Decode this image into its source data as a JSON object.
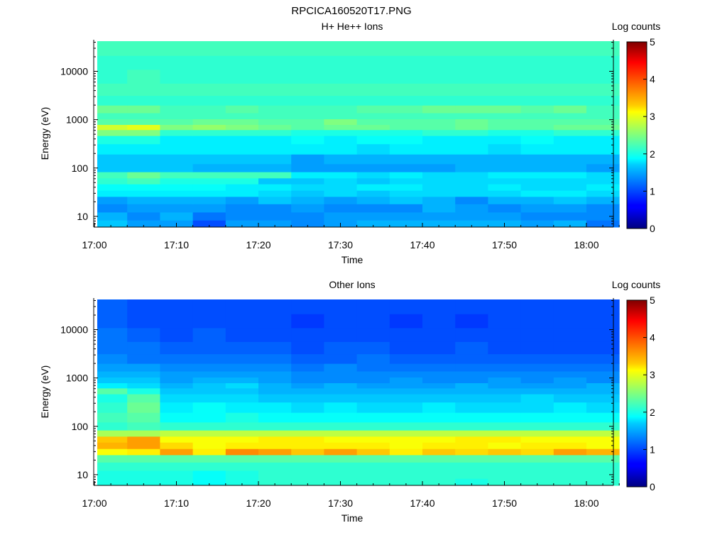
{
  "figure_title": "RPCICA160520T17.PNG",
  "chart_data": [
    {
      "type": "heatmap",
      "title": "H+ He++ Ions",
      "xlabel": "Time",
      "ylabel": "Energy (eV)",
      "x_ticks": [
        "17:00",
        "17:10",
        "17:20",
        "17:30",
        "17:40",
        "17:50",
        "18:00"
      ],
      "x_range": [
        "17:00",
        "18:06"
      ],
      "y_scale": "log",
      "y_ticks": [
        "10",
        "100",
        "1000",
        "10000"
      ],
      "y_range": [
        6,
        45000
      ],
      "colorbar": {
        "label": "Log counts",
        "ticks": [
          "0",
          "1",
          "2",
          "3",
          "4",
          "5"
        ],
        "range": [
          0,
          5
        ],
        "colormap": "jet"
      },
      "time_bins": [
        "17:00",
        "17:04",
        "17:08",
        "17:12",
        "17:16",
        "17:20",
        "17:24",
        "17:28",
        "17:32",
        "17:36",
        "17:40",
        "17:44",
        "17:48",
        "17:52",
        "17:56",
        "18:00",
        "18:04"
      ],
      "energy_bins": [
        7,
        10,
        15,
        22,
        30,
        40,
        55,
        70,
        100,
        150,
        250,
        400,
        550,
        700,
        900,
        1200,
        1600,
        2500,
        4000,
        8000,
        15000,
        30000
      ],
      "values": [
        [
          1.6,
          1.4,
          1.4,
          1.0,
          1.4,
          1.4,
          1.3,
          1.4,
          1.5,
          1.5,
          1.5,
          1.5,
          1.5,
          1.4,
          1.5,
          1.2,
          1.3
        ],
        [
          1.5,
          1.3,
          1.5,
          1.2,
          1.3,
          1.3,
          1.3,
          1.4,
          1.4,
          1.4,
          1.4,
          1.4,
          1.4,
          1.3,
          1.3,
          1.3,
          1.4
        ],
        [
          1.3,
          1.4,
          1.4,
          1.4,
          1.3,
          1.3,
          1.4,
          1.3,
          1.3,
          1.3,
          1.5,
          1.4,
          1.3,
          1.4,
          1.4,
          1.3,
          1.3
        ],
        [
          1.4,
          1.5,
          1.5,
          1.5,
          1.4,
          1.6,
          1.5,
          1.4,
          1.5,
          1.6,
          1.5,
          1.3,
          1.5,
          1.5,
          1.6,
          1.5,
          1.6
        ],
        [
          1.8,
          1.8,
          1.8,
          1.8,
          1.8,
          1.7,
          1.6,
          1.7,
          1.6,
          1.7,
          1.7,
          1.7,
          1.7,
          1.8,
          1.8,
          1.7,
          1.6
        ],
        [
          1.9,
          1.9,
          1.9,
          1.9,
          1.8,
          1.8,
          1.7,
          1.7,
          1.8,
          1.8,
          1.7,
          1.7,
          1.8,
          1.7,
          1.7,
          1.8,
          1.7
        ],
        [
          2.1,
          2.2,
          2.0,
          2.0,
          2.0,
          1.6,
          1.6,
          1.7,
          1.6,
          1.7,
          1.7,
          1.7,
          1.7,
          1.7,
          1.7,
          1.7,
          1.6
        ],
        [
          2.2,
          2.4,
          2.2,
          2.2,
          2.2,
          2.2,
          1.8,
          1.8,
          1.7,
          1.8,
          1.7,
          1.7,
          1.8,
          1.8,
          1.8,
          1.7,
          1.8
        ],
        [
          1.6,
          1.6,
          1.6,
          1.5,
          1.5,
          1.5,
          1.4,
          1.4,
          1.4,
          1.4,
          1.4,
          1.5,
          1.5,
          1.5,
          1.5,
          1.4,
          1.4
        ],
        [
          1.6,
          1.6,
          1.6,
          1.6,
          1.6,
          1.6,
          1.4,
          1.5,
          1.5,
          1.5,
          1.5,
          1.5,
          1.5,
          1.5,
          1.5,
          1.5,
          1.4
        ],
        [
          1.8,
          1.8,
          1.8,
          1.8,
          1.8,
          1.8,
          1.8,
          1.8,
          1.7,
          1.8,
          1.8,
          1.8,
          1.7,
          1.8,
          1.8,
          1.8,
          1.8
        ],
        [
          2.0,
          2.0,
          1.8,
          1.8,
          1.8,
          1.8,
          1.9,
          1.8,
          1.9,
          1.9,
          1.8,
          1.8,
          1.8,
          1.9,
          1.8,
          1.8,
          1.8
        ],
        [
          2.5,
          2.5,
          2.1,
          2.1,
          2.1,
          2.1,
          2.0,
          2.0,
          2.0,
          2.0,
          2.1,
          2.1,
          2.0,
          2.0,
          2.1,
          2.1,
          2.1
        ],
        [
          2.9,
          3.0,
          2.5,
          2.6,
          2.5,
          2.4,
          2.3,
          2.4,
          2.4,
          2.3,
          2.3,
          2.4,
          2.3,
          2.3,
          2.4,
          2.4,
          2.5
        ],
        [
          2.3,
          2.3,
          2.3,
          2.4,
          2.4,
          2.3,
          2.3,
          2.5,
          2.3,
          2.3,
          2.3,
          2.4,
          2.3,
          2.3,
          2.3,
          2.3,
          2.4
        ],
        [
          2.2,
          2.2,
          2.2,
          2.2,
          2.2,
          2.2,
          2.2,
          2.2,
          2.2,
          2.2,
          2.2,
          2.2,
          2.2,
          2.2,
          2.2,
          2.2,
          2.2
        ],
        [
          2.4,
          2.4,
          2.2,
          2.2,
          2.3,
          2.2,
          2.2,
          2.2,
          2.3,
          2.3,
          2.4,
          2.4,
          2.4,
          2.3,
          2.4,
          2.2,
          2.2
        ],
        [
          2.1,
          2.1,
          2.1,
          2.1,
          2.1,
          2.1,
          2.1,
          2.1,
          2.1,
          2.1,
          2.1,
          2.1,
          2.1,
          2.1,
          2.1,
          2.1,
          2.1
        ],
        [
          2.2,
          2.2,
          2.2,
          2.2,
          2.2,
          2.2,
          2.2,
          2.2,
          2.2,
          2.2,
          2.2,
          2.2,
          2.2,
          2.2,
          2.2,
          2.2,
          2.2
        ],
        [
          2.1,
          2.2,
          2.1,
          2.1,
          2.1,
          2.1,
          2.1,
          2.1,
          2.1,
          2.1,
          2.1,
          2.1,
          2.1,
          2.1,
          2.1,
          2.1,
          2.1
        ],
        [
          2.1,
          2.1,
          2.1,
          2.1,
          2.1,
          2.1,
          2.1,
          2.1,
          2.1,
          2.1,
          2.1,
          2.1,
          2.1,
          2.1,
          2.1,
          2.1,
          2.1
        ],
        [
          2.2,
          2.2,
          2.2,
          2.2,
          2.2,
          2.2,
          2.2,
          2.2,
          2.2,
          2.2,
          2.2,
          2.2,
          2.2,
          2.2,
          2.2,
          2.2,
          2.2
        ]
      ]
    },
    {
      "type": "heatmap",
      "title": "Other Ions",
      "xlabel": "Time",
      "ylabel": "Energy (eV)",
      "x_ticks": [
        "17:00",
        "17:10",
        "17:20",
        "17:30",
        "17:40",
        "17:50",
        "18:00"
      ],
      "x_range": [
        "17:00",
        "18:06"
      ],
      "y_scale": "log",
      "y_ticks": [
        "10",
        "100",
        "1000",
        "10000"
      ],
      "y_range": [
        6,
        45000
      ],
      "colorbar": {
        "label": "Log counts",
        "ticks": [
          "0",
          "1",
          "2",
          "3",
          "4",
          "5"
        ],
        "range": [
          0,
          5
        ],
        "colormap": "jet"
      },
      "time_bins": [
        "17:00",
        "17:04",
        "17:08",
        "17:12",
        "17:16",
        "17:20",
        "17:24",
        "17:28",
        "17:32",
        "17:36",
        "17:40",
        "17:44",
        "17:48",
        "17:52",
        "17:56",
        "18:00",
        "18:04"
      ],
      "energy_bins": [
        7,
        10,
        15,
        22,
        30,
        40,
        55,
        70,
        100,
        150,
        250,
        400,
        550,
        700,
        900,
        1200,
        1600,
        2500,
        4000,
        8000,
        15000,
        30000
      ],
      "values": [
        [
          2.0,
          2.0,
          2.0,
          1.9,
          2.0,
          2.1,
          2.1,
          2.1,
          2.1,
          2.1,
          2.1,
          2.0,
          2.1,
          2.1,
          2.1,
          2.1,
          2.1
        ],
        [
          2.0,
          2.0,
          2.0,
          1.9,
          2.0,
          2.1,
          2.1,
          2.1,
          2.1,
          2.1,
          2.1,
          2.1,
          2.1,
          2.1,
          2.1,
          2.1,
          2.1
        ],
        [
          2.1,
          2.1,
          2.1,
          2.1,
          2.1,
          2.1,
          2.1,
          2.1,
          2.1,
          2.1,
          2.1,
          2.1,
          2.1,
          2.1,
          2.1,
          2.1,
          2.1
        ],
        [
          2.3,
          2.3,
          2.3,
          2.3,
          2.3,
          2.3,
          2.3,
          2.3,
          2.3,
          2.3,
          2.3,
          2.3,
          2.3,
          2.3,
          2.3,
          2.3,
          2.3
        ],
        [
          3.1,
          3.2,
          3.6,
          3.2,
          3.7,
          3.6,
          3.4,
          3.6,
          3.4,
          3.2,
          3.4,
          3.3,
          3.4,
          3.3,
          3.6,
          3.5,
          3.3
        ],
        [
          3.5,
          3.6,
          3.3,
          3.1,
          3.2,
          3.2,
          3.2,
          3.2,
          3.2,
          3.1,
          3.2,
          3.2,
          3.1,
          3.2,
          3.2,
          3.1,
          3.2
        ],
        [
          3.4,
          3.6,
          3.1,
          3.1,
          3.1,
          3.2,
          3.2,
          3.1,
          3.1,
          3.1,
          3.1,
          3.2,
          3.2,
          3.1,
          3.1,
          3.1,
          3.1
        ],
        [
          2.7,
          2.7,
          2.8,
          2.8,
          2.8,
          2.8,
          2.8,
          2.8,
          2.8,
          2.8,
          2.8,
          2.8,
          2.8,
          2.8,
          2.8,
          2.8,
          2.8
        ],
        [
          2.1,
          2.2,
          2.1,
          2.1,
          2.1,
          2.1,
          2.1,
          2.1,
          2.1,
          2.1,
          2.1,
          2.1,
          2.1,
          2.1,
          2.1,
          2.1,
          2.1
        ],
        [
          2.2,
          2.3,
          1.9,
          1.9,
          2.0,
          1.9,
          1.9,
          1.9,
          1.9,
          1.9,
          1.9,
          1.9,
          1.9,
          1.9,
          1.9,
          1.9,
          1.9
        ],
        [
          2.1,
          2.4,
          1.8,
          1.9,
          1.8,
          1.8,
          1.7,
          1.8,
          1.7,
          1.7,
          1.8,
          1.7,
          1.7,
          1.7,
          1.8,
          1.7,
          1.7
        ],
        [
          2.0,
          2.3,
          1.7,
          1.7,
          1.7,
          1.6,
          1.6,
          1.6,
          1.6,
          1.6,
          1.6,
          1.6,
          1.6,
          1.7,
          1.6,
          1.6,
          1.6
        ],
        [
          2.3,
          2.0,
          1.6,
          1.6,
          1.6,
          1.5,
          1.5,
          1.5,
          1.5,
          1.5,
          1.5,
          1.5,
          1.5,
          1.5,
          1.5,
          1.5,
          1.5
        ],
        [
          1.8,
          1.7,
          1.5,
          1.6,
          1.7,
          1.5,
          1.4,
          1.5,
          1.4,
          1.4,
          1.4,
          1.5,
          1.4,
          1.4,
          1.4,
          1.5,
          1.4
        ],
        [
          1.6,
          1.6,
          1.4,
          1.5,
          1.5,
          1.4,
          1.3,
          1.3,
          1.3,
          1.4,
          1.3,
          1.3,
          1.4,
          1.3,
          1.4,
          1.3,
          1.3
        ],
        [
          1.5,
          1.5,
          1.4,
          1.4,
          1.4,
          1.4,
          1.3,
          1.3,
          1.3,
          1.3,
          1.3,
          1.3,
          1.3,
          1.3,
          1.3,
          1.3,
          1.3
        ],
        [
          1.4,
          1.4,
          1.3,
          1.3,
          1.3,
          1.3,
          1.2,
          1.3,
          1.2,
          1.2,
          1.2,
          1.2,
          1.2,
          1.2,
          1.2,
          1.2,
          1.2
        ],
        [
          1.3,
          1.2,
          1.2,
          1.2,
          1.2,
          1.2,
          1.1,
          1.1,
          1.2,
          1.1,
          1.1,
          1.1,
          1.1,
          1.1,
          1.1,
          1.1,
          1.1
        ],
        [
          1.2,
          1.2,
          1.1,
          1.1,
          1.1,
          1.1,
          1.0,
          1.1,
          1.1,
          1.0,
          1.0,
          1.1,
          1.0,
          1.0,
          1.0,
          1.0,
          1.0
        ],
        [
          1.2,
          1.1,
          1.0,
          1.1,
          1.0,
          1.0,
          1.0,
          1.0,
          1.0,
          1.0,
          1.0,
          1.0,
          1.0,
          1.0,
          1.0,
          1.0,
          1.0
        ],
        [
          1.1,
          1.0,
          1.0,
          1.0,
          1.0,
          1.0,
          0.9,
          1.0,
          1.0,
          0.9,
          1.0,
          0.9,
          1.0,
          1.0,
          1.0,
          1.0,
          1.0
        ],
        [
          1.1,
          1.0,
          1.0,
          1.0,
          1.0,
          1.0,
          1.0,
          1.0,
          1.0,
          1.0,
          1.0,
          1.0,
          1.0,
          1.0,
          1.0,
          1.0,
          1.0
        ]
      ]
    }
  ]
}
